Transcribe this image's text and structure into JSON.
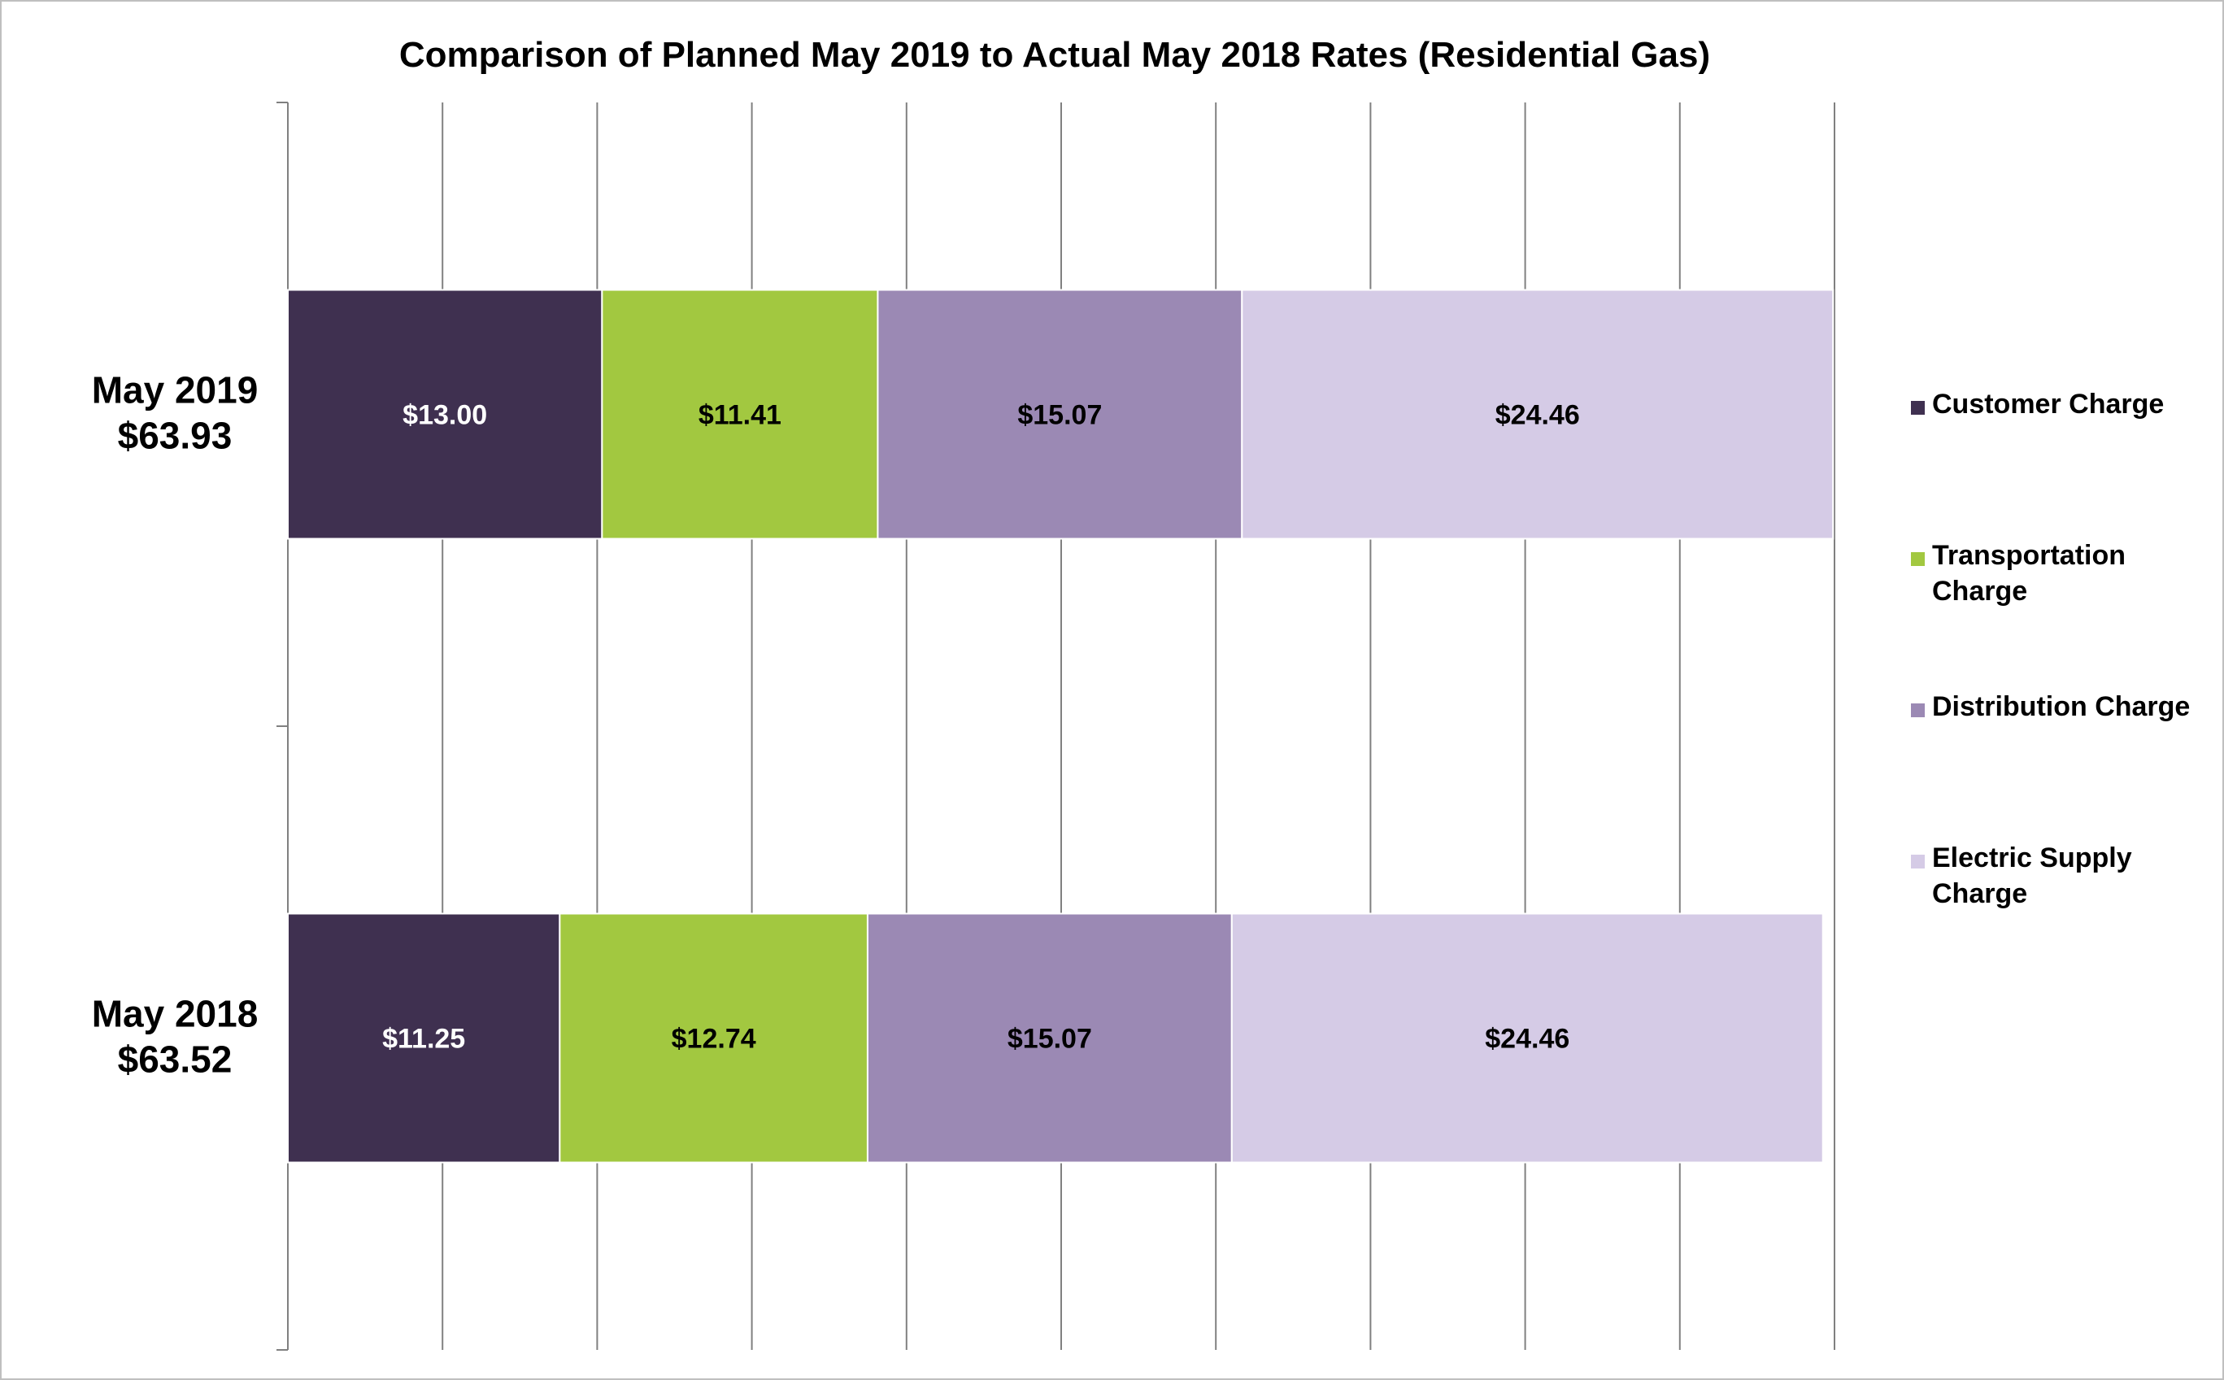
{
  "chart_data": {
    "type": "bar",
    "orientation": "horizontal",
    "stacked": true,
    "title": "Comparison of Planned May 2019 to Actual May 2018 Rates (Residential Gas)",
    "categories": [
      {
        "name": "May 2019",
        "total": "$63.93"
      },
      {
        "name": "May 2018",
        "total": "$63.52"
      }
    ],
    "series": [
      {
        "name": "Customer Charge",
        "legend_lines": [
          "Customer Charge"
        ],
        "color": "#3f3050",
        "label_color": "#ffffff",
        "values": [
          13.0,
          11.25
        ],
        "labels": [
          "$13.00",
          "$11.25"
        ]
      },
      {
        "name": "Transportation Charge",
        "legend_lines": [
          "Transportation",
          "Charge"
        ],
        "color": "#a2c840",
        "label_color": "#000000",
        "values": [
          11.41,
          12.74
        ],
        "labels": [
          "$11.41",
          "$12.74"
        ]
      },
      {
        "name": "Distribution Charge",
        "legend_lines": [
          "Distribution Charge"
        ],
        "color": "#9b89b4",
        "label_color": "#000000",
        "values": [
          15.07,
          15.07
        ],
        "labels": [
          "$15.07",
          "$15.07"
        ]
      },
      {
        "name": "Electric Supply Charge",
        "legend_lines": [
          "Electric Supply",
          "Charge"
        ],
        "color": "#d5cbe6",
        "label_color": "#000000",
        "values": [
          24.46,
          24.46
        ],
        "labels": [
          "$24.46",
          "$24.46"
        ]
      }
    ],
    "xlim": [
      0,
      64
    ],
    "grid_line_count": 10,
    "grid": true,
    "legend_position": "right",
    "gridline_color": "#808080",
    "axis_color": "#808080"
  }
}
